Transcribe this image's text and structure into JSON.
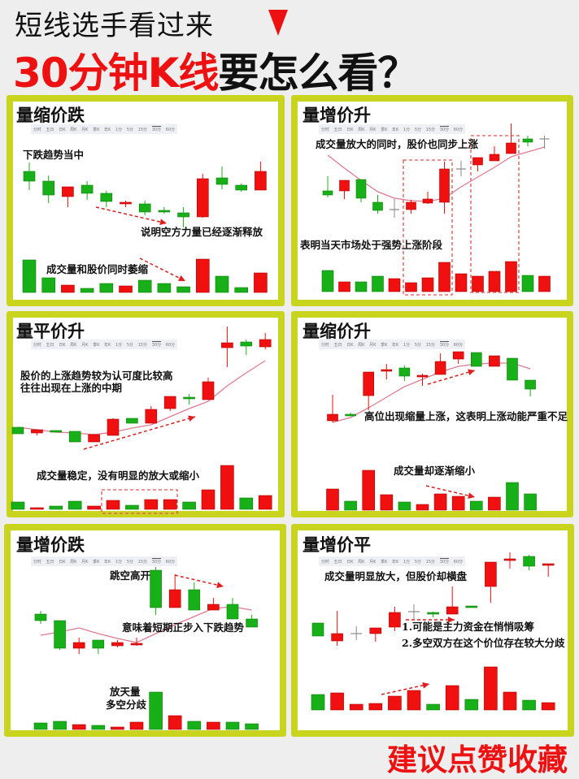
{
  "header": {
    "line1": "短线选手看过来",
    "line2_red": "30分钟K线",
    "line2_black": "要怎么看？"
  },
  "footer": {
    "cta": "建议点赞收藏"
  },
  "colors": {
    "up": "#f01010",
    "down": "#18b018",
    "cross": "#888888",
    "ma": "#e07a90",
    "frame": "#c9d41f",
    "accent": "#ee1111"
  },
  "tabs": [
    "分时",
    "五日",
    "日K",
    "周K",
    "月K",
    "季K",
    "年K",
    "1分",
    "5分",
    "15分",
    "30分",
    "60分"
  ],
  "selected_tab": "30分",
  "panels": [
    {
      "title": "量缩价跌",
      "notes": [
        "下跌趋势当中",
        "说明空方力量已经逐渐释放",
        "成交量和股价同时萎缩"
      ],
      "chart_data": {
        "type": "candlestick",
        "candles": [
          [
            99,
            87,
            110,
            76
          ],
          [
            87,
            70,
            94,
            60
          ],
          [
            68,
            80,
            80,
            55
          ],
          [
            82,
            72,
            87,
            64
          ],
          [
            72,
            62,
            75,
            55
          ],
          [
            59,
            61,
            63,
            55
          ],
          [
            59,
            49,
            63,
            45
          ],
          [
            51,
            49,
            55,
            47
          ],
          [
            48,
            43,
            55,
            30
          ],
          [
            43,
            90,
            96,
            42
          ],
          [
            91,
            83,
            105,
            77
          ],
          [
            82,
            76,
            84,
            74
          ],
          [
            76,
            99,
            111,
            76
          ]
        ],
        "volume": [
          40,
          18,
          9,
          5,
          11,
          8,
          15,
          11,
          7,
          41,
          20,
          6,
          24
        ],
        "ma": []
      }
    },
    {
      "title": "量增价升",
      "notes": [
        "成交量放大的同时，股价也同步上涨",
        "表明当天市场处于强势上涨阶段"
      ],
      "chart_data": {
        "type": "candlestick",
        "candles": [
          [
            75,
            70,
            93,
            67
          ],
          [
            75,
            88,
            88,
            65
          ],
          [
            89,
            66,
            89,
            61
          ],
          [
            61,
            51,
            70,
            47
          ],
          [
            52,
            52,
            65,
            42
          ],
          [
            52,
            61,
            64,
            47
          ],
          [
            60,
            65,
            74,
            59
          ],
          [
            61,
            102,
            111,
            47
          ],
          [
            102,
            102,
            112,
            93
          ],
          [
            107,
            116,
            116,
            99
          ],
          [
            112,
            120,
            130,
            112
          ],
          [
            121,
            134,
            158,
            121
          ],
          [
            139,
            135,
            143,
            130
          ],
          [
            139,
            139,
            143,
            127
          ]
        ],
        "volume": [
          26,
          12,
          12,
          19,
          16,
          11,
          17,
          36,
          22,
          19,
          25,
          37,
          20,
          19
        ],
        "ma": [
          119,
          103,
          88,
          74,
          66,
          63,
          62,
          66,
          80,
          92,
          104,
          117,
          123,
          129
        ]
      }
    },
    {
      "title": "量平价升",
      "notes": [
        "股价的上涨趋势较为认可度比较高",
        "往往出现在上涨的中期",
        "成交量稳定，没有明显的放大或缩小"
      ],
      "chart_data": {
        "type": "candlestick",
        "candles": [
          [
            54,
            46,
            54,
            46
          ],
          [
            47,
            51,
            51,
            44
          ],
          [
            50,
            49,
            50,
            49
          ],
          [
            49,
            36,
            49,
            36
          ],
          [
            36,
            45,
            46,
            36
          ],
          [
            44,
            64,
            65,
            44
          ],
          [
            65,
            59,
            65,
            59
          ],
          [
            59,
            76,
            80,
            59
          ],
          [
            77,
            92,
            92,
            74
          ],
          [
            91,
            89,
            95,
            82
          ],
          [
            88,
            110,
            115,
            88
          ],
          [
            152,
            158,
            178,
            128
          ],
          [
            159,
            154,
            162,
            143
          ],
          [
            153,
            162,
            170,
            150
          ]
        ],
        "volume": [
          9,
          2,
          4,
          10,
          4,
          11,
          5,
          12,
          12,
          9,
          24,
          54,
          14,
          17
        ],
        "ma": [
          54,
          51,
          48,
          47,
          45,
          48,
          53,
          57,
          67,
          77,
          86,
          105,
          121,
          136
        ]
      }
    },
    {
      "title": "量缩价升",
      "notes": [
        "高位出现缩量上涨，这表明上涨动能严重不足",
        "成交量却逐渐缩小"
      ],
      "chart_data": {
        "type": "candlestick",
        "candles": [
          [
            62,
            70,
            94,
            60
          ],
          [
            70,
            69,
            72,
            68
          ],
          [
            93,
            122,
            122,
            75
          ],
          [
            123,
            125,
            132,
            113
          ],
          [
            127,
            117,
            130,
            111
          ],
          [
            117,
            118,
            120,
            105
          ],
          [
            119,
            135,
            145,
            119
          ],
          [
            138,
            147,
            147,
            132
          ],
          [
            146,
            129,
            146,
            129
          ],
          [
            129,
            142,
            142,
            129
          ],
          [
            139,
            112,
            139,
            112
          ],
          [
            112,
            101,
            112,
            92
          ]
        ],
        "volume": [
          26,
          11,
          49,
          19,
          10,
          7,
          20,
          17,
          11,
          16,
          34,
          20
        ],
        "ma": [
          60,
          66,
          78,
          91,
          104,
          113,
          122,
          129,
          132,
          133,
          133,
          126
        ]
      }
    },
    {
      "title": "量增价跌",
      "notes": [
        "跳空高开",
        "意味着短期正步入下跌趋势",
        "放天量",
        "多空分歧"
      ],
      "chart_data": {
        "type": "candlestick",
        "candles": [
          [
            84,
            76,
            88,
            72
          ],
          [
            76,
            42,
            76,
            40
          ],
          [
            42,
            49,
            55,
            35
          ],
          [
            52,
            42,
            52,
            35
          ],
          [
            45,
            49,
            52,
            43
          ],
          [
            47,
            48,
            55,
            45
          ],
          [
            138,
            92,
            142,
            83
          ],
          [
            92,
            114,
            133,
            92
          ],
          [
            114,
            89,
            123,
            89
          ],
          [
            89,
            96,
            104,
            89
          ],
          [
            96,
            78,
            104,
            78
          ],
          [
            78,
            68,
            83,
            68
          ]
        ],
        "volume": [
          8,
          10,
          6,
          5,
          3,
          9,
          46,
          17,
          10,
          9,
          9,
          7
        ],
        "ma": [
          58,
          62,
          67,
          60,
          54,
          49,
          60,
          71,
          81,
          91,
          93,
          89
        ]
      }
    },
    {
      "title": "量增价平",
      "notes": [
        "成交量明显放大，但股价却横盘",
        "1.可能是主力资金在悄悄吸筹",
        "2.多空双方在这个价位存在较大分歧"
      ],
      "chart_data": {
        "type": "candlestick",
        "candles": [
          [
            73,
            57,
            73,
            57
          ],
          [
            51,
            60,
            88,
            45
          ],
          [
            60,
            60,
            69,
            52
          ],
          [
            60,
            67,
            67,
            50
          ],
          [
            68,
            86,
            93,
            63
          ],
          [
            87,
            87,
            96,
            78
          ],
          [
            86,
            84,
            87,
            80
          ],
          [
            84,
            93,
            118,
            84
          ],
          [
            94,
            92,
            94,
            92
          ],
          [
            118,
            148,
            148,
            98
          ],
          [
            151,
            152,
            160,
            140
          ],
          [
            155,
            143,
            157,
            138
          ],
          [
            144,
            146,
            146,
            130
          ]
        ],
        "volume": [
          19,
          21,
          7,
          8,
          17,
          24,
          7,
          30,
          13,
          53,
          22,
          12,
          9
        ],
        "ma": []
      }
    }
  ]
}
